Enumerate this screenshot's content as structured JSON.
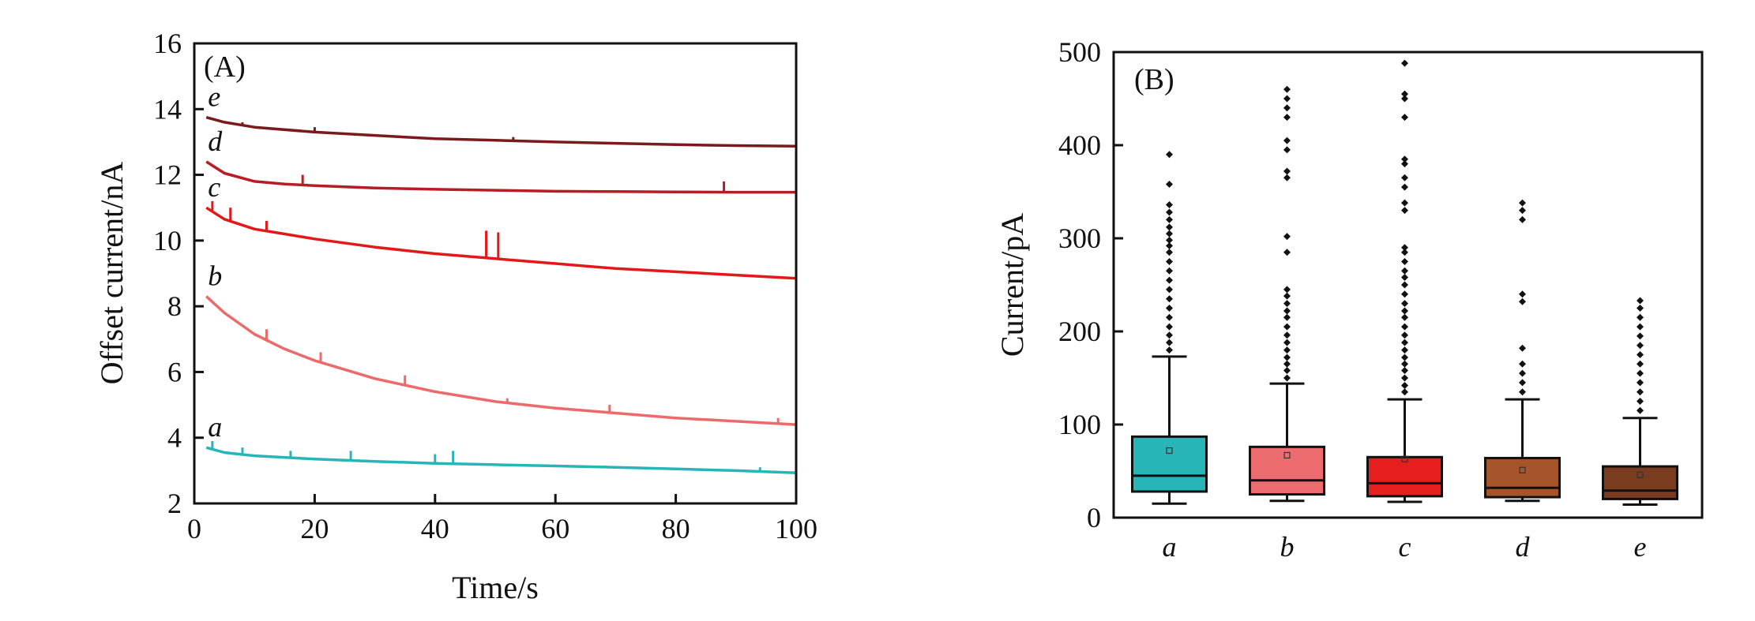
{
  "chart_data": [
    {
      "type": "line",
      "panel_label": "(A)",
      "xlabel": "Time/s",
      "ylabel": "Offset current/nA",
      "xlim": [
        0,
        100
      ],
      "ylim": [
        2,
        16
      ],
      "xticks": [
        "0",
        "20",
        "40",
        "60",
        "80",
        "100"
      ],
      "yticks": [
        "2",
        "4",
        "6",
        "8",
        "10",
        "12",
        "14",
        "16"
      ],
      "series": [
        {
          "name": "a",
          "color": "#27b5b8",
          "x": [
            2,
            5,
            10,
            20,
            30,
            40,
            50,
            60,
            70,
            80,
            90,
            100
          ],
          "y": [
            3.7,
            3.55,
            3.45,
            3.35,
            3.28,
            3.22,
            3.18,
            3.14,
            3.1,
            3.05,
            3.0,
            2.93
          ],
          "spikes": [
            [
              3,
              3.9
            ],
            [
              8,
              3.7
            ],
            [
              16,
              3.6
            ],
            [
              26,
              3.6
            ],
            [
              40,
              3.5
            ],
            [
              43,
              3.6
            ],
            [
              94,
              3.1
            ]
          ]
        },
        {
          "name": "b",
          "color": "#ec6a6a",
          "x": [
            2,
            5,
            10,
            15,
            20,
            30,
            40,
            50,
            60,
            70,
            80,
            90,
            100
          ],
          "y": [
            8.3,
            7.8,
            7.15,
            6.7,
            6.35,
            5.8,
            5.4,
            5.1,
            4.9,
            4.75,
            4.6,
            4.5,
            4.4
          ],
          "spikes": [
            [
              12,
              7.3
            ],
            [
              21,
              6.6
            ],
            [
              35,
              5.9
            ],
            [
              52,
              5.2
            ],
            [
              69,
              5.0
            ],
            [
              97,
              4.6
            ]
          ]
        },
        {
          "name": "c",
          "color": "#e31919",
          "x": [
            2,
            5,
            10,
            15,
            20,
            30,
            40,
            50,
            60,
            70,
            80,
            90,
            100
          ],
          "y": [
            11.0,
            10.65,
            10.35,
            10.2,
            10.05,
            9.8,
            9.6,
            9.45,
            9.3,
            9.15,
            9.05,
            8.95,
            8.85
          ],
          "spikes": [
            [
              3,
              11.2
            ],
            [
              6,
              11.0
            ],
            [
              12,
              10.6
            ],
            [
              48.5,
              10.3
            ],
            [
              50.5,
              10.25
            ]
          ]
        },
        {
          "name": "d",
          "color": "#b81c24",
          "x": [
            2,
            5,
            10,
            15,
            20,
            30,
            40,
            50,
            60,
            70,
            80,
            90,
            100
          ],
          "y": [
            12.4,
            12.05,
            11.8,
            11.72,
            11.67,
            11.6,
            11.56,
            11.53,
            11.5,
            11.49,
            11.48,
            11.47,
            11.47
          ],
          "spikes": [
            [
              18,
              12.0
            ],
            [
              88,
              11.8
            ]
          ]
        },
        {
          "name": "e",
          "color": "#7a1a1c",
          "x": [
            2,
            5,
            10,
            20,
            30,
            40,
            50,
            60,
            70,
            80,
            90,
            100
          ],
          "y": [
            13.75,
            13.6,
            13.45,
            13.3,
            13.2,
            13.1,
            13.05,
            13.0,
            12.96,
            12.92,
            12.89,
            12.87
          ],
          "spikes": [
            [
              8,
              13.6
            ],
            [
              20,
              13.45
            ],
            [
              53,
              13.15
            ]
          ]
        }
      ]
    },
    {
      "type": "box",
      "panel_label": "(B)",
      "xlabel": "",
      "ylabel": "Current/pA",
      "ylim": [
        0,
        500
      ],
      "yticks": [
        "0",
        "100",
        "200",
        "300",
        "400",
        "500"
      ],
      "categories": [
        "a",
        "b",
        "c",
        "d",
        "e"
      ],
      "boxes": [
        {
          "name": "a",
          "color": "#27b5b8",
          "whislo": 15,
          "q1": 28,
          "med": 45,
          "q3": 87,
          "whishi": 173,
          "mean": 72,
          "outliers": [
            180,
            188,
            196,
            205,
            215,
            225,
            235,
            245,
            255,
            265,
            275,
            285,
            292,
            298,
            305,
            312,
            320,
            328,
            336,
            358,
            390
          ]
        },
        {
          "name": "b",
          "color": "#ed6c6f",
          "whislo": 18,
          "q1": 25,
          "med": 40,
          "q3": 76,
          "whishi": 144,
          "mean": 67,
          "outliers": [
            150,
            158,
            165,
            172,
            180,
            188,
            196,
            205,
            215,
            222,
            230,
            238,
            245,
            285,
            302,
            365,
            372,
            395,
            405,
            430,
            440,
            450,
            460
          ]
        },
        {
          "name": "c",
          "color": "#e61e1e",
          "whislo": 17,
          "q1": 23,
          "med": 37,
          "q3": 65,
          "whishi": 127,
          "mean": 63,
          "outliers": [
            135,
            142,
            150,
            158,
            165,
            172,
            180,
            188,
            196,
            205,
            215,
            222,
            230,
            240,
            250,
            258,
            265,
            275,
            285,
            290,
            330,
            338,
            355,
            365,
            380,
            385,
            430,
            450,
            455,
            488
          ]
        },
        {
          "name": "d",
          "color": "#a6542a",
          "whislo": 18,
          "q1": 22,
          "med": 32,
          "q3": 64,
          "whishi": 127,
          "mean": 51,
          "outliers": [
            135,
            145,
            155,
            165,
            182,
            232,
            240,
            320,
            330,
            338
          ]
        },
        {
          "name": "e",
          "color": "#7a3c1e",
          "whislo": 14,
          "q1": 20,
          "med": 29,
          "q3": 55,
          "whishi": 107,
          "mean": 46,
          "outliers": [
            115,
            125,
            135,
            145,
            155,
            165,
            175,
            185,
            195,
            205,
            215,
            225,
            233
          ]
        }
      ]
    }
  ]
}
